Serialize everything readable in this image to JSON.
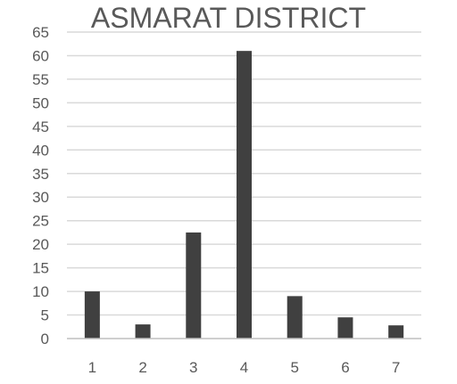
{
  "chart_data": {
    "type": "bar",
    "title": "ASMARAT DISTRICT",
    "categories": [
      "1",
      "2",
      "3",
      "4",
      "5",
      "6",
      "7"
    ],
    "values": [
      10,
      3,
      22.5,
      61,
      9,
      4.5,
      2.8
    ],
    "ylim": [
      0,
      65
    ],
    "yticks": [
      "0",
      "5",
      "10",
      "15",
      "20",
      "25",
      "30",
      "35",
      "40",
      "45",
      "50",
      "55",
      "60",
      "65"
    ],
    "xlabel": "",
    "ylabel": "",
    "grid": true,
    "bar_color": "#404040",
    "grid_color": "#d9d9d9",
    "axis_color": "#bfbfbf",
    "text_color": "#595959"
  }
}
